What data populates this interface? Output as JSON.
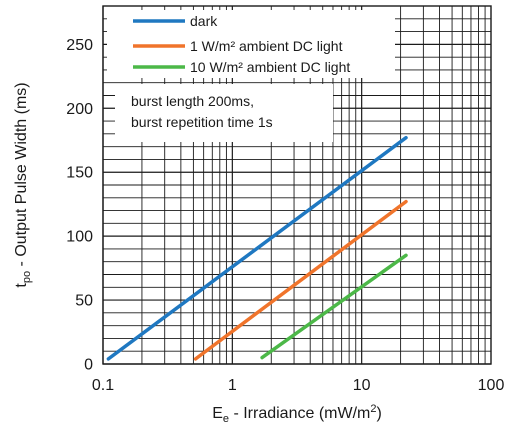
{
  "chart_data": {
    "type": "line",
    "x_scale": "log",
    "xlim": [
      0.1,
      100
    ],
    "ylim": [
      0,
      280
    ],
    "grid": true,
    "x_ticks": [
      "0.1",
      "1",
      "10",
      "100"
    ],
    "y_ticks": [
      "0",
      "50",
      "100",
      "150",
      "200",
      "250"
    ],
    "xlabel": {
      "main": "E",
      "sub": "e",
      "rest": " - Irradiance (mW/m",
      "sup": "2",
      "end": ")"
    },
    "ylabel": {
      "main": "t",
      "sub": "po",
      "rest": " - Output Pulse Width (ms)"
    },
    "legend_position": "top-left",
    "series": [
      {
        "name": "dark",
        "color": "#1f78c1",
        "x": [
          0.11,
          22
        ],
        "y": [
          4,
          177
        ]
      },
      {
        "name": "1 W/m² ambient DC light",
        "color": "#f0742b",
        "x": [
          0.52,
          22
        ],
        "y": [
          4,
          127
        ]
      },
      {
        "name": "10 W/m² ambient DC light",
        "color": "#4cb848",
        "x": [
          1.7,
          22
        ],
        "y": [
          5,
          85
        ]
      }
    ],
    "annotation": [
      "burst length 200ms,",
      "burst repetition time 1s"
    ]
  }
}
